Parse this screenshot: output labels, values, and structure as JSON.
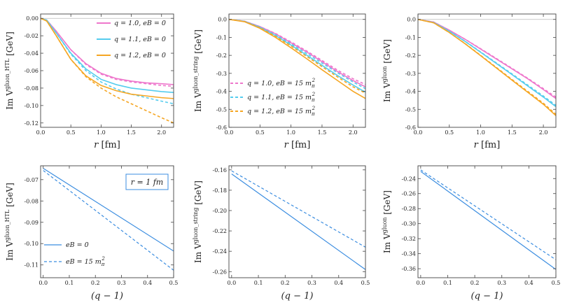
{
  "chart_data": [
    {
      "type": "line",
      "ylabel": "Im V^gluon_HTL [GeV]",
      "xlabel": "r [fm]",
      "xlim": [
        0,
        2.2
      ],
      "ylim": [
        -0.125,
        0.005
      ],
      "xticks": [
        "0.0",
        "0.5",
        "1.0",
        "1.5",
        "2.0"
      ],
      "yticks": [
        "0.00",
        "-0.02",
        "-0.04",
        "-0.06",
        "-0.08",
        "-0.10",
        "-0.12"
      ],
      "legend": [
        "q = 1.0, eB = 0",
        "q = 1.1, eB = 0",
        "q = 1.2, eB = 0"
      ],
      "legend_position": "top-right",
      "series": [
        {
          "name": "q = 1.0, eB = 0",
          "color": "#ee77cc",
          "dash": "solid",
          "x": [
            0,
            0.1,
            0.25,
            0.5,
            0.75,
            1.0,
            1.25,
            1.5,
            1.75,
            2.0,
            2.2
          ],
          "y": [
            0,
            -0.002,
            -0.014,
            -0.036,
            -0.052,
            -0.063,
            -0.069,
            -0.072,
            -0.074,
            -0.075,
            -0.076
          ]
        },
        {
          "name": "q = 1.0, eB = 15",
          "color": "#ee77cc",
          "dash": "dashed",
          "x": [
            0,
            0.1,
            0.25,
            0.5,
            0.75,
            1.0,
            1.25,
            1.5,
            1.75,
            2.0,
            2.2
          ],
          "y": [
            0,
            -0.002,
            -0.014,
            -0.036,
            -0.053,
            -0.064,
            -0.07,
            -0.073,
            -0.075,
            -0.077,
            -0.078
          ]
        },
        {
          "name": "q = 1.1, eB = 0",
          "color": "#55ccee",
          "dash": "solid",
          "x": [
            0,
            0.1,
            0.25,
            0.5,
            0.75,
            1.0,
            1.25,
            1.5,
            1.75,
            2.0,
            2.2
          ],
          "y": [
            0,
            -0.002,
            -0.016,
            -0.04,
            -0.058,
            -0.07,
            -0.076,
            -0.08,
            -0.082,
            -0.084,
            -0.085
          ]
        },
        {
          "name": "q = 1.1, eB = 15",
          "color": "#55ccee",
          "dash": "dashed",
          "x": [
            0,
            0.1,
            0.25,
            0.5,
            0.75,
            1.0,
            1.25,
            1.5,
            1.75,
            2.0,
            2.2
          ],
          "y": [
            0,
            -0.002,
            -0.016,
            -0.041,
            -0.06,
            -0.073,
            -0.081,
            -0.087,
            -0.091,
            -0.095,
            -0.098
          ]
        },
        {
          "name": "q = 1.2, eB = 0",
          "color": "#f5a623",
          "dash": "solid",
          "x": [
            0,
            0.1,
            0.25,
            0.5,
            0.75,
            1.0,
            1.25,
            1.5,
            1.75,
            2.0,
            2.2
          ],
          "y": [
            0,
            -0.003,
            -0.019,
            -0.047,
            -0.066,
            -0.077,
            -0.083,
            -0.087,
            -0.089,
            -0.091,
            -0.092
          ]
        },
        {
          "name": "q = 1.2, eB = 15",
          "color": "#f5a623",
          "dash": "dashed",
          "x": [
            0,
            0.1,
            0.25,
            0.5,
            0.75,
            1.0,
            1.25,
            1.5,
            1.75,
            2.0,
            2.2
          ],
          "y": [
            0,
            -0.003,
            -0.019,
            -0.047,
            -0.067,
            -0.08,
            -0.09,
            -0.098,
            -0.106,
            -0.114,
            -0.12
          ]
        }
      ]
    },
    {
      "type": "line",
      "ylabel": "Im V^gluon_string [GeV]",
      "xlabel": "r [fm]",
      "xlim": [
        0,
        2.2
      ],
      "ylim": [
        -0.6,
        0.03
      ],
      "xticks": [
        "0.0",
        "0.5",
        "1.0",
        "1.5",
        "2.0"
      ],
      "yticks": [
        "0.0",
        "-0.1",
        "-0.2",
        "-0.3",
        "-0.4",
        "-0.5",
        "-0.6"
      ],
      "legend": [
        "q = 1.0, eB = 15 m_π^2",
        "q = 1.1, eB = 15 m_π^2",
        "q = 1.2, eB = 15 m_π^2"
      ],
      "legend_position": "bottom-left",
      "series": [
        {
          "name": "q = 1.0, eB = 0",
          "color": "#ee77cc",
          "dash": "solid",
          "x": [
            0,
            0.25,
            0.5,
            0.75,
            1.0,
            1.25,
            1.5,
            1.75,
            2.0,
            2.2
          ],
          "y": [
            0,
            -0.01,
            -0.04,
            -0.08,
            -0.13,
            -0.18,
            -0.235,
            -0.29,
            -0.34,
            -0.375
          ]
        },
        {
          "name": "q = 1.0, eB = 15",
          "color": "#ee77cc",
          "dash": "dashed",
          "x": [
            0,
            0.25,
            0.5,
            0.75,
            1.0,
            1.25,
            1.5,
            1.75,
            2.0,
            2.2
          ],
          "y": [
            0,
            -0.01,
            -0.04,
            -0.078,
            -0.125,
            -0.175,
            -0.228,
            -0.282,
            -0.33,
            -0.362
          ]
        },
        {
          "name": "q = 1.1, eB = 0",
          "color": "#55ccee",
          "dash": "solid",
          "x": [
            0,
            0.25,
            0.5,
            0.75,
            1.0,
            1.25,
            1.5,
            1.75,
            2.0,
            2.2
          ],
          "y": [
            0,
            -0.011,
            -0.044,
            -0.09,
            -0.143,
            -0.198,
            -0.255,
            -0.312,
            -0.365,
            -0.405
          ]
        },
        {
          "name": "q = 1.1, eB = 15",
          "color": "#55ccee",
          "dash": "dashed",
          "x": [
            0,
            0.25,
            0.5,
            0.75,
            1.0,
            1.25,
            1.5,
            1.75,
            2.0,
            2.2
          ],
          "y": [
            0,
            -0.011,
            -0.043,
            -0.086,
            -0.136,
            -0.189,
            -0.243,
            -0.297,
            -0.348,
            -0.385
          ]
        },
        {
          "name": "q = 1.2, eB = 0",
          "color": "#f5a623",
          "dash": "solid",
          "x": [
            0,
            0.25,
            0.5,
            0.75,
            1.0,
            1.25,
            1.5,
            1.75,
            2.0,
            2.2
          ],
          "y": [
            0,
            -0.013,
            -0.05,
            -0.1,
            -0.158,
            -0.218,
            -0.28,
            -0.34,
            -0.4,
            -0.44
          ]
        },
        {
          "name": "q = 1.2, eB = 15",
          "color": "#f5a623",
          "dash": "dashed",
          "x": [
            0,
            0.25,
            0.5,
            0.75,
            1.0,
            1.25,
            1.5,
            1.75,
            2.0,
            2.2
          ],
          "y": [
            0,
            -0.012,
            -0.047,
            -0.094,
            -0.148,
            -0.205,
            -0.263,
            -0.32,
            -0.375,
            -0.41
          ]
        }
      ]
    },
    {
      "type": "line",
      "ylabel": "Im V^gluon [GeV]",
      "xlabel": "r [fm]",
      "xlim": [
        0,
        2.2
      ],
      "ylim": [
        -0.6,
        0.03
      ],
      "xticks": [
        "0.0",
        "0.5",
        "1.0",
        "1.5",
        "2.0"
      ],
      "yticks": [
        "0.0",
        "-0.1",
        "-0.2",
        "-0.3",
        "-0.4",
        "-0.5",
        "-0.6"
      ],
      "series": [
        {
          "name": "q = 1.0, eB = 0",
          "color": "#ee77cc",
          "dash": "solid",
          "x": [
            0,
            0.25,
            0.5,
            0.75,
            1.0,
            1.25,
            1.5,
            1.75,
            2.0,
            2.2
          ],
          "y": [
            0,
            -0.015,
            -0.06,
            -0.11,
            -0.165,
            -0.22,
            -0.275,
            -0.33,
            -0.39,
            -0.44
          ]
        },
        {
          "name": "q = 1.0, eB = 15",
          "color": "#ee77cc",
          "dash": "dashed",
          "x": [
            0,
            0.25,
            0.5,
            0.75,
            1.0,
            1.25,
            1.5,
            1.75,
            2.0,
            2.2
          ],
          "y": [
            0,
            -0.015,
            -0.06,
            -0.11,
            -0.163,
            -0.217,
            -0.272,
            -0.327,
            -0.385,
            -0.432
          ]
        },
        {
          "name": "q = 1.1, eB = 0",
          "color": "#55ccee",
          "dash": "solid",
          "x": [
            0,
            0.25,
            0.5,
            0.75,
            1.0,
            1.25,
            1.5,
            1.75,
            2.0,
            2.2
          ],
          "y": [
            0,
            -0.017,
            -0.066,
            -0.122,
            -0.183,
            -0.245,
            -0.307,
            -0.37,
            -0.432,
            -0.485
          ]
        },
        {
          "name": "q = 1.1, eB = 15",
          "color": "#55ccee",
          "dash": "dashed",
          "x": [
            0,
            0.25,
            0.5,
            0.75,
            1.0,
            1.25,
            1.5,
            1.75,
            2.0,
            2.2
          ],
          "y": [
            0,
            -0.017,
            -0.066,
            -0.121,
            -0.181,
            -0.242,
            -0.303,
            -0.365,
            -0.426,
            -0.478
          ]
        },
        {
          "name": "q = 1.2, eB = 0",
          "color": "#f5a623",
          "dash": "solid",
          "x": [
            0,
            0.25,
            0.5,
            0.75,
            1.0,
            1.25,
            1.5,
            1.75,
            2.0,
            2.2
          ],
          "y": [
            0,
            -0.019,
            -0.073,
            -0.135,
            -0.202,
            -0.27,
            -0.338,
            -0.405,
            -0.472,
            -0.535
          ]
        },
        {
          "name": "q = 1.2, eB = 15",
          "color": "#f5a623",
          "dash": "dashed",
          "x": [
            0,
            0.25,
            0.5,
            0.75,
            1.0,
            1.25,
            1.5,
            1.75,
            2.0,
            2.2
          ],
          "y": [
            0,
            -0.019,
            -0.073,
            -0.134,
            -0.2,
            -0.267,
            -0.334,
            -0.4,
            -0.466,
            -0.528
          ]
        }
      ]
    },
    {
      "type": "line",
      "ylabel": "Im V^gluon_HTL [GeV]",
      "xlabel": "(q − 1)",
      "xlim": [
        -0.01,
        0.5
      ],
      "ylim": [
        -0.116,
        -0.0635
      ],
      "xticks": [
        "0.0",
        "0.1",
        "0.2",
        "0.3",
        "0.4",
        "0.5"
      ],
      "xtick_values": [
        0,
        0.1,
        0.2,
        0.3,
        0.4,
        0.5
      ],
      "yticks": [
        "-0.07",
        "-0.08",
        "-0.09",
        "-0.10",
        "-0.11"
      ],
      "ytick_values": [
        -0.07,
        -0.08,
        -0.09,
        -0.1,
        -0.11
      ],
      "annotation": "r = 1 fm",
      "legend": [
        "eB = 0",
        "eB = 15 m_π^2"
      ],
      "legend_position": "bottom-left",
      "series": [
        {
          "name": "eB = 0",
          "color": "#3b8de0",
          "dash": "solid",
          "x": [
            0,
            0.5
          ],
          "y": [
            -0.0647,
            -0.1035
          ]
        },
        {
          "name": "eB = 15 m_π^2",
          "color": "#3b8de0",
          "dash": "dashed",
          "x": [
            0,
            0.5
          ],
          "y": [
            -0.0657,
            -0.1125
          ]
        }
      ]
    },
    {
      "type": "line",
      "ylabel": "Im V^gluon_string [GeV]",
      "xlabel": "(q − 1)",
      "xlim": [
        -0.01,
        0.5
      ],
      "ylim": [
        -0.266,
        -0.156
      ],
      "xticks": [
        "0.0",
        "0.1",
        "0.2",
        "0.3",
        "0.4",
        "0.5"
      ],
      "xtick_values": [
        0,
        0.1,
        0.2,
        0.3,
        0.4,
        0.5
      ],
      "yticks": [
        "-0.16",
        "-0.18",
        "-0.20",
        "-0.22",
        "-0.24",
        "-0.26"
      ],
      "ytick_values": [
        -0.16,
        -0.18,
        -0.2,
        -0.22,
        -0.24,
        -0.26
      ],
      "series": [
        {
          "name": "eB = 0",
          "color": "#3b8de0",
          "dash": "solid",
          "x": [
            0,
            0.5
          ],
          "y": [
            -0.164,
            -0.258
          ]
        },
        {
          "name": "eB = 15 m_π^2",
          "color": "#3b8de0",
          "dash": "dashed",
          "x": [
            0,
            0.5
          ],
          "y": [
            -0.161,
            -0.236
          ]
        }
      ]
    },
    {
      "type": "line",
      "ylabel": "Im V^gluon [GeV]",
      "xlabel": "(q − 1)",
      "xlim": [
        -0.01,
        0.5
      ],
      "ylim": [
        -0.372,
        -0.223
      ],
      "xticks": [
        "0.0",
        "0.1",
        "0.2",
        "0.3",
        "0.4",
        "0.5"
      ],
      "xtick_values": [
        0,
        0.1,
        0.2,
        0.3,
        0.4,
        0.5
      ],
      "yticks": [
        "-0.24",
        "-0.26",
        "-0.28",
        "-0.30",
        "-0.32",
        "-0.34",
        "-0.36"
      ],
      "ytick_values": [
        -0.24,
        -0.26,
        -0.28,
        -0.3,
        -0.32,
        -0.34,
        -0.36
      ],
      "series": [
        {
          "name": "eB = 0",
          "color": "#3b8de0",
          "dash": "solid",
          "x": [
            0,
            0.5
          ],
          "y": [
            -0.2305,
            -0.361
          ]
        },
        {
          "name": "eB = 15 m_π^2",
          "color": "#3b8de0",
          "dash": "dashed",
          "x": [
            0,
            0.5
          ],
          "y": [
            -0.2285,
            -0.348
          ]
        }
      ]
    }
  ]
}
